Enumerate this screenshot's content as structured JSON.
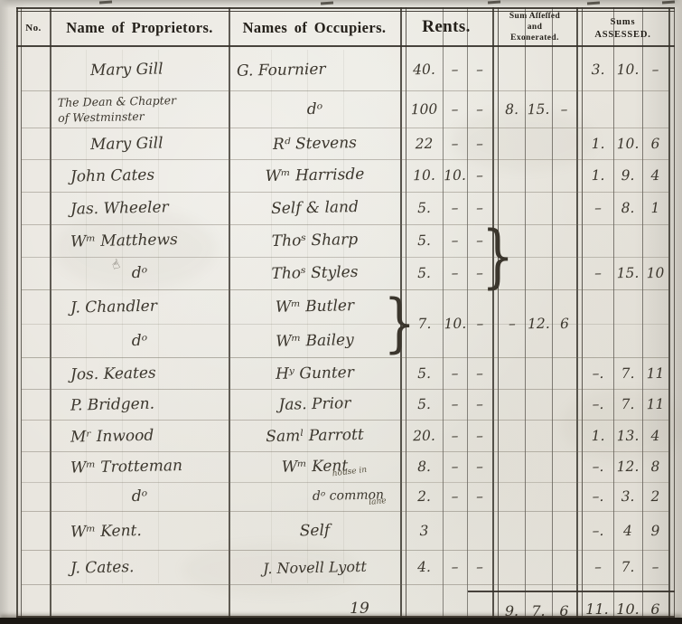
{
  "header": {
    "no": "No.",
    "proprietors": "Name of Proprietors.",
    "occupiers": "Names of Occupiers.",
    "rents": "Rents.",
    "sum_assessed_exonerated": [
      "Sum Aſſeſſed",
      "and",
      "Exonerated."
    ],
    "sums_assessed": [
      "Sums",
      "ASSESSED."
    ]
  },
  "rows": [
    {
      "proprietor": "Mary Gill",
      "occupier": "G. Fournier",
      "rent": [
        "40.",
        "–",
        "–"
      ],
      "assessed": [
        "3.",
        "10.",
        "–"
      ]
    },
    {
      "proprietor": "The Dean & Chapter\nof Westminster",
      "occupier": "dᵒ",
      "rent": [
        "100",
        "–",
        "–"
      ],
      "exonerated": [
        "8.",
        "15.",
        "–"
      ]
    },
    {
      "proprietor": "Mary Gill",
      "occupier": "Rᵈ Stevens",
      "rent": [
        "22",
        "–",
        "–"
      ],
      "assessed": [
        "1.",
        "10.",
        "6"
      ]
    },
    {
      "proprietor": "John Cates",
      "occupier": "Wᵐ Harrisde",
      "rent": [
        "10.",
        "10.",
        "–"
      ],
      "assessed": [
        "1.",
        "9.",
        "4"
      ]
    },
    {
      "proprietor": "Jas. Wheeler",
      "occupier": "Self & land",
      "rent": [
        "5.",
        "–",
        "–"
      ],
      "assessed": [
        "–",
        "8.",
        "1"
      ]
    },
    {
      "proprietor": "Wᵐ Matthews",
      "occupier": "Thoˢ Sharp",
      "rent": [
        "5.",
        "–",
        "–"
      ]
    },
    {
      "proprietor": "dᵒ",
      "occupier": "Thoˢ Styles",
      "rent": [
        "5.",
        "–",
        "–"
      ],
      "assessed": [
        "–",
        "15.",
        "10"
      ]
    },
    {
      "proprietor": "J. Chandler",
      "occupier": "Wᵐ Butler",
      "rent": [
        "7.",
        "10.",
        "–"
      ],
      "exonerated": [
        "–",
        "12.",
        "6"
      ]
    },
    {
      "proprietor": "dᵒ",
      "occupier": "Wᵐ Bailey"
    },
    {
      "proprietor": "Jos. Keates",
      "occupier": "Hʸ Gunter",
      "rent": [
        "5.",
        "–",
        "–"
      ],
      "assessed": [
        "–.",
        "7.",
        "11"
      ]
    },
    {
      "proprietor": "P. Bridgen.",
      "occupier": "Jas. Prior",
      "rent": [
        "5.",
        "–",
        "–"
      ],
      "assessed": [
        "–.",
        "7.",
        "11"
      ]
    },
    {
      "proprietor": "Mʳ Inwood",
      "occupier": "Samˡ Parrott",
      "rent": [
        "20.",
        "–",
        "–"
      ],
      "assessed": [
        "1.",
        "13.",
        "4"
      ]
    },
    {
      "proprietor": "Wᵐ Trotteman",
      "occupier": "Wᵐ Kent",
      "rent": [
        "8.",
        "–",
        "–"
      ],
      "assessed": [
        "–.",
        "12.",
        "8"
      ]
    },
    {
      "proprietor": "dᵒ",
      "occupier": "dᵒ common",
      "note_above": "house in",
      "note_below": "lane",
      "rent": [
        "2.",
        "–",
        "–"
      ],
      "assessed": [
        "–.",
        "3.",
        "2"
      ]
    },
    {
      "proprietor": "Wᵐ Kent.",
      "occupier": "Self",
      "rent": [
        "3",
        "",
        ""
      ],
      "assessed": [
        "–.",
        "4",
        "9"
      ]
    },
    {
      "proprietor": "J. Cates.",
      "occupier": "J. Novell Lyott",
      "rent": [
        "4.",
        "–",
        "–"
      ],
      "assessed": [
        "–",
        "7.",
        "–"
      ]
    }
  ],
  "marks": {
    "brace_rents": "}",
    "brace_occupiers": "}",
    "manicule": "☝"
  },
  "footer": {
    "count": "19",
    "total_exonerated": [
      "9.",
      "7.",
      "6"
    ],
    "total_assessed": [
      "11.",
      "10.",
      "6"
    ]
  },
  "colors": {
    "paper": "#e9e6df",
    "printed_ink": "#24201a",
    "handwriting_ink": "#3b362d",
    "pencil_line": "#6b6557",
    "page_edge_dark": "#1b1813"
  }
}
